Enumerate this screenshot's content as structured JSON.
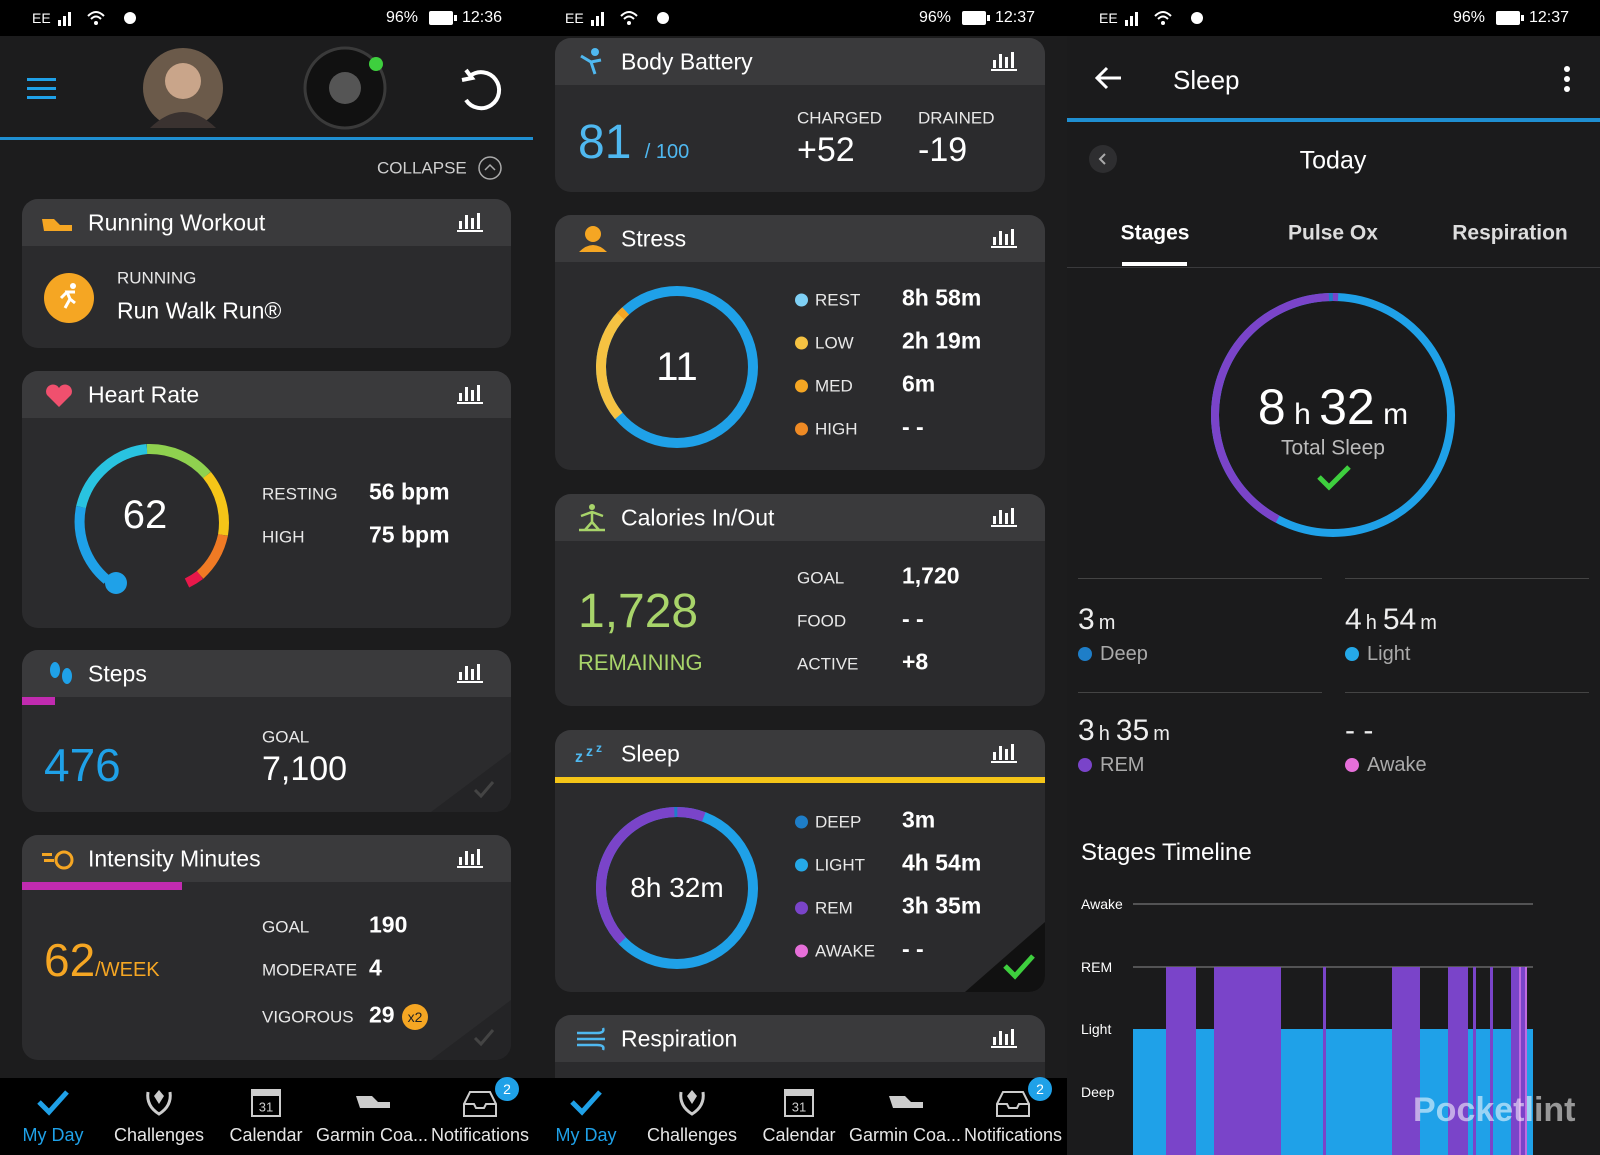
{
  "left": {
    "status": {
      "carrier": "EE",
      "battery": "96%",
      "time": "12:36"
    },
    "collapse": "COLLAPSE",
    "running_workout": {
      "title": "Running Workout",
      "label": "RUNNING",
      "name": "Run Walk Run®"
    },
    "heart_rate": {
      "title": "Heart Rate",
      "value": 62,
      "rows": [
        {
          "label": "RESTING",
          "value": "56 bpm"
        },
        {
          "label": "HIGH",
          "value": "75 bpm"
        }
      ]
    },
    "steps": {
      "title": "Steps",
      "value": 476,
      "goal_label": "GOAL",
      "goal": "7,100"
    },
    "intensity": {
      "title": "Intensity Minutes",
      "value": 62,
      "unit": "/WEEK",
      "rows": [
        {
          "label": "GOAL",
          "value": 190
        },
        {
          "label": "MODERATE",
          "value": 4
        },
        {
          "label": "VIGOROUS",
          "value": 29
        }
      ],
      "badge": "x2"
    }
  },
  "middle": {
    "status": {
      "carrier": "EE",
      "battery": "96%",
      "time": "12:37"
    },
    "body_battery": {
      "title": "Body Battery",
      "value": 81,
      "max": "/ 100",
      "charged_label": "CHARGED",
      "charged": "+52",
      "drained_label": "DRAINED",
      "drained": "-19"
    },
    "stress": {
      "title": "Stress",
      "value": 11,
      "rows": [
        {
          "label": "REST",
          "value": "8h 58m"
        },
        {
          "label": "LOW",
          "value": "2h 19m"
        },
        {
          "label": "MED",
          "value": "6m"
        },
        {
          "label": "HIGH",
          "value": "- -"
        }
      ]
    },
    "calories": {
      "title": "Calories In/Out",
      "value": "1,728",
      "label": "REMAINING",
      "rows": [
        {
          "label": "GOAL",
          "value": "1,720"
        },
        {
          "label": "FOOD",
          "value": "- -"
        },
        {
          "label": "ACTIVE",
          "value": "+8"
        }
      ]
    },
    "sleep": {
      "title": "Sleep",
      "value": "8h 32m",
      "rows": [
        {
          "label": "DEEP",
          "value": "3m"
        },
        {
          "label": "LIGHT",
          "value": "4h 54m"
        },
        {
          "label": "REM",
          "value": "3h 35m"
        },
        {
          "label": "AWAKE",
          "value": "- -"
        }
      ]
    },
    "respiration": {
      "title": "Respiration"
    }
  },
  "nav": {
    "items": [
      "My Day",
      "Challenges",
      "Calendar",
      "Garmin Coa...",
      "Notifications"
    ],
    "calendar_day": "31",
    "badge": "2"
  },
  "right": {
    "status": {
      "carrier": "EE",
      "battery": "96%",
      "time": "12:37"
    },
    "title": "Sleep",
    "date": "Today",
    "tabs": [
      "Stages",
      "Pulse Ox",
      "Respiration"
    ],
    "total": {
      "hours": "8",
      "hours_unit": "h",
      "minutes": "32",
      "minutes_unit": "m",
      "label": "Total Sleep"
    },
    "stages": [
      {
        "parts": [
          {
            "n": "3",
            "u": "m"
          }
        ],
        "name": "Deep"
      },
      {
        "parts": [
          {
            "n": "4",
            "u": "h"
          },
          {
            "n": "54",
            "u": "m"
          }
        ],
        "name": "Light"
      },
      {
        "parts": [
          {
            "n": "3",
            "u": "h"
          },
          {
            "n": "35",
            "u": "m"
          }
        ],
        "name": "REM"
      },
      {
        "parts": [
          {
            "n": "- -"
          }
        ],
        "name": "Awake"
      }
    ],
    "timeline_title": "Stages Timeline",
    "levels": [
      "Awake",
      "REM",
      "Light",
      "Deep"
    ],
    "watermark": "Pocketlint"
  }
}
